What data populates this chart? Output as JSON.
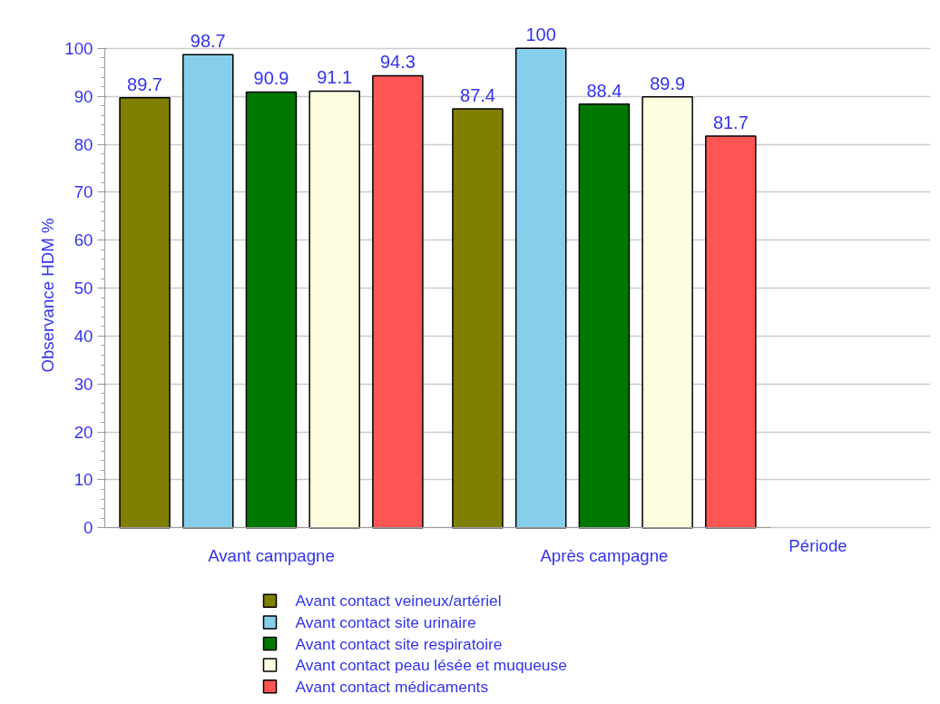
{
  "chart_data": {
    "type": "bar",
    "xlabel": "Période",
    "ylabel": "Observance HDM %",
    "categories": [
      "Avant campagne",
      "Après campagne"
    ],
    "series": [
      {
        "name": "Avant contact veineux/artériel",
        "color": "#808000",
        "values": [
          89.7,
          87.4
        ]
      },
      {
        "name": "Avant contact site urinaire",
        "color": "#87ceeb",
        "values": [
          98.7,
          100
        ]
      },
      {
        "name": "Avant contact site respiratoire",
        "color": "#007800",
        "values": [
          90.9,
          88.4
        ]
      },
      {
        "name": "Avant contact peau lésée et muqueuse",
        "color": "#fffde0",
        "values": [
          91.1,
          89.9
        ]
      },
      {
        "name": "Avant contact médicaments",
        "color": "#ff5555",
        "values": [
          94.3,
          81.7
        ]
      }
    ],
    "ylim": [
      0,
      100
    ],
    "yticks": [
      0,
      10,
      20,
      30,
      40,
      50,
      60,
      70,
      80,
      90,
      100
    ],
    "grid": "y",
    "legend": "bottom",
    "data_labels": true
  }
}
